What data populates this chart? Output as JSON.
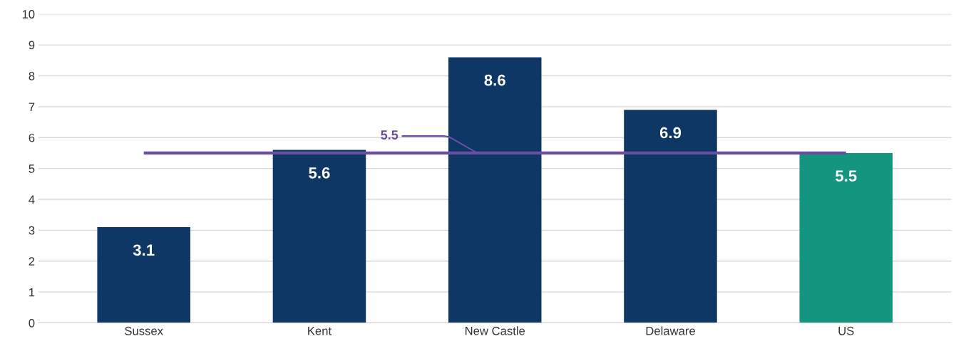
{
  "chart_data": {
    "type": "bar",
    "categories": [
      "Sussex",
      "Kent",
      "New Castle",
      "Delaware",
      "US"
    ],
    "values": [
      3.1,
      5.6,
      8.6,
      6.9,
      5.5
    ],
    "colors": [
      "#0e3766",
      "#0e3766",
      "#0e3766",
      "#0e3766",
      "#14957f"
    ],
    "ylim": [
      0,
      10
    ],
    "yticks": [
      0,
      1,
      2,
      3,
      4,
      5,
      6,
      7,
      8,
      9,
      10
    ],
    "grid": "y",
    "data_labels": true,
    "ref_lines": [
      {
        "axis": "y",
        "value": 5.5,
        "label": "5.5",
        "color": "#6a4ea3"
      }
    ]
  }
}
